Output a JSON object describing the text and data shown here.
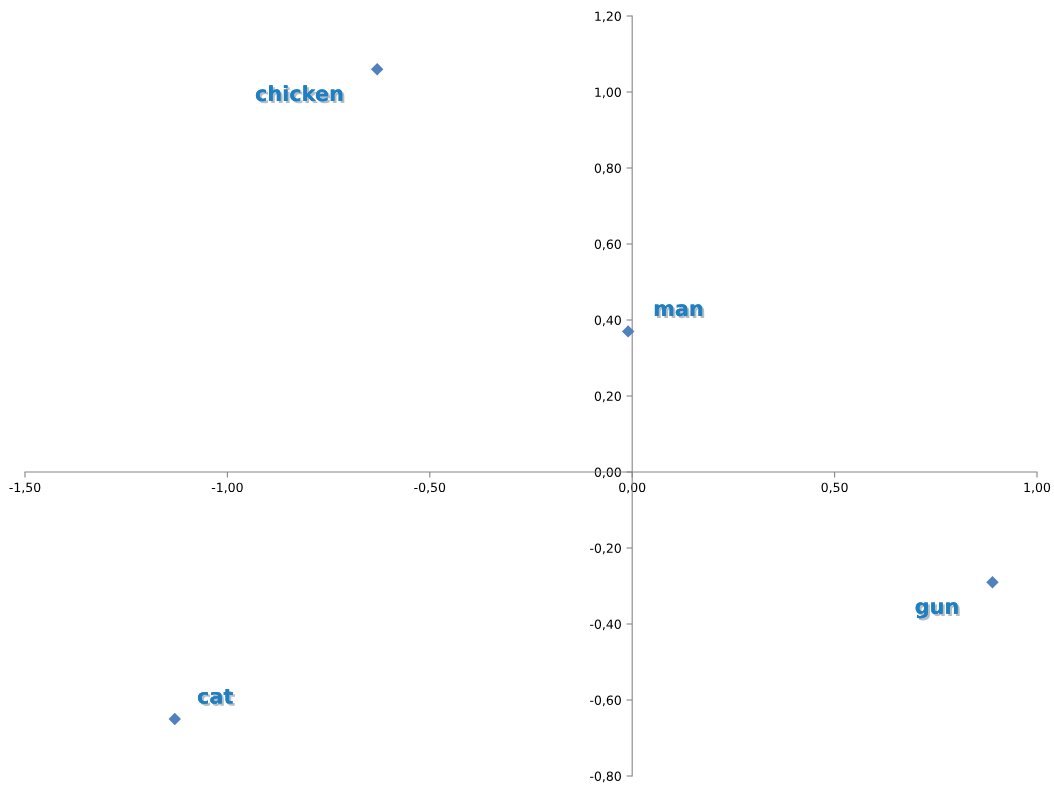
{
  "chart_data": {
    "type": "scatter",
    "x": [
      -0.63,
      -0.01,
      0.89,
      -1.13
    ],
    "values": [
      1.06,
      0.37,
      -0.29,
      -0.65
    ],
    "color": "#4f81bd",
    "marker": "diamond",
    "grid": false,
    "xlim": [
      -1.5,
      1.0
    ],
    "ylim": [
      -0.8,
      1.2
    ],
    "xticks": [
      {
        "value": -1.5,
        "label": "-1,50"
      },
      {
        "value": -1.0,
        "label": "-1,00"
      },
      {
        "value": -0.5,
        "label": "-0,50"
      },
      {
        "value": 0,
        "label": "0,00"
      },
      {
        "value": 0.5,
        "label": "0,50"
      },
      {
        "value": 1.0,
        "label": "1,00"
      }
    ],
    "yticks": [
      {
        "value": -0.8,
        "label": "-0,80"
      },
      {
        "value": -0.6,
        "label": "-0,60"
      },
      {
        "value": -0.4,
        "label": "-0,40"
      },
      {
        "value": -0.2,
        "label": "-0,20"
      },
      {
        "value": 0,
        "label": "0,00"
      },
      {
        "value": 0.2,
        "label": "0,20"
      },
      {
        "value": 0.4,
        "label": "0,40"
      },
      {
        "value": 0.6,
        "label": "0,60"
      },
      {
        "value": 0.8,
        "label": "0,80"
      },
      {
        "value": 1.0,
        "label": "1,00"
      },
      {
        "value": 1.2,
        "label": "1,20"
      }
    ],
    "annotations": [
      {
        "text": "chicken",
        "x": -0.63,
        "y": 1.06
      },
      {
        "text": "man",
        "x": -0.01,
        "y": 0.37
      },
      {
        "text": "gun",
        "x": 0.89,
        "y": -0.29
      },
      {
        "text": "cat",
        "x": -1.13,
        "y": -0.65
      }
    ]
  }
}
